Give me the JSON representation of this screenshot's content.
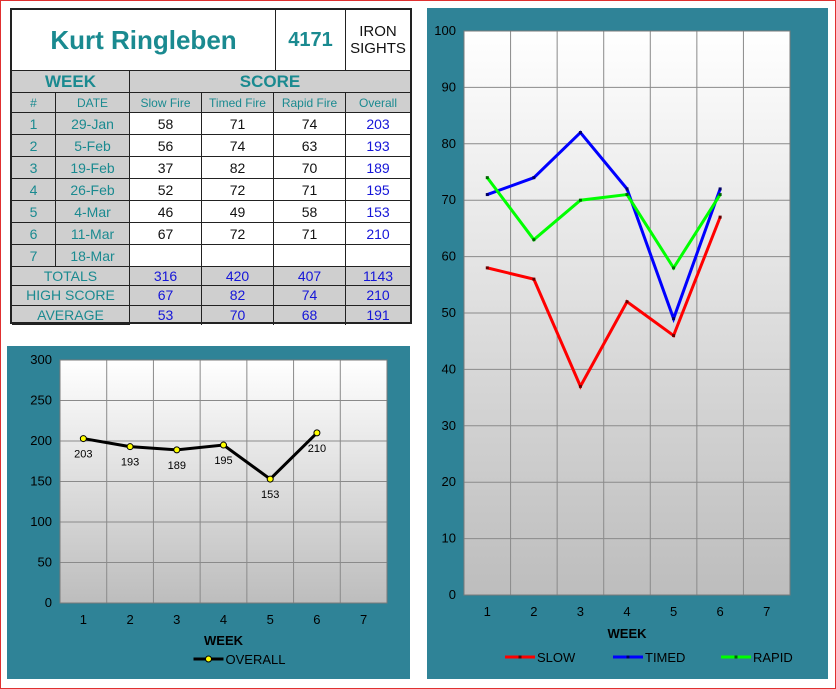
{
  "shooter": {
    "name": "Kurt Ringleben",
    "number": "4171",
    "category": "IRON\nSIGHTS"
  },
  "table": {
    "week_header": "WEEK",
    "score_header": "SCORE",
    "columns": [
      "#",
      "DATE",
      "Slow Fire",
      "Timed Fire",
      "Rapid Fire",
      "Overall"
    ],
    "rows": [
      {
        "num": "1",
        "date": "29-Jan",
        "slow": "58",
        "timed": "71",
        "rapid": "74",
        "overall": "203"
      },
      {
        "num": "2",
        "date": "5-Feb",
        "slow": "56",
        "timed": "74",
        "rapid": "63",
        "overall": "193"
      },
      {
        "num": "3",
        "date": "19-Feb",
        "slow": "37",
        "timed": "82",
        "rapid": "70",
        "overall": "189"
      },
      {
        "num": "4",
        "date": "26-Feb",
        "slow": "52",
        "timed": "72",
        "rapid": "71",
        "overall": "195"
      },
      {
        "num": "5",
        "date": "4-Mar",
        "slow": "46",
        "timed": "49",
        "rapid": "58",
        "overall": "153"
      },
      {
        "num": "6",
        "date": "11-Mar",
        "slow": "67",
        "timed": "72",
        "rapid": "71",
        "overall": "210"
      },
      {
        "num": "7",
        "date": "18-Mar",
        "slow": "",
        "timed": "",
        "rapid": "",
        "overall": ""
      }
    ],
    "summary": [
      {
        "label": "TOTALS",
        "slow": "316",
        "timed": "420",
        "rapid": "407",
        "overall": "1143"
      },
      {
        "label": "HIGH SCORE",
        "slow": "67",
        "timed": "82",
        "rapid": "74",
        "overall": "210"
      },
      {
        "label": "AVERAGE",
        "slow": "53",
        "timed": "70",
        "rapid": "68",
        "overall": "191"
      }
    ]
  },
  "colors": {
    "panel": "#2f8397",
    "table_bg": "#cfcfcf",
    "teal_text": "#1a8a90",
    "blue_text": "#1515d8",
    "slow": "#ff0000",
    "timed": "#0000ff",
    "rapid": "#00ff00",
    "overall": "#000000",
    "overall_marker": "#ffff00"
  },
  "chart_data": [
    {
      "type": "line",
      "x": [
        1,
        2,
        3,
        4,
        5,
        6
      ],
      "xticks": [
        1,
        2,
        3,
        4,
        5,
        6,
        7
      ],
      "xlim": [
        0.5,
        7.5
      ],
      "ylim": [
        0,
        300
      ],
      "yticks": [
        0,
        50,
        100,
        150,
        200,
        250,
        300
      ],
      "xlabel": "WEEK",
      "grid": true,
      "legend": "bottom",
      "series": [
        {
          "name": "OVERALL",
          "values": [
            203,
            193,
            189,
            195,
            153,
            210
          ],
          "labels": [
            "203",
            "193",
            "189",
            "195",
            "153",
            "210"
          ]
        }
      ]
    },
    {
      "type": "line",
      "x": [
        1,
        2,
        3,
        4,
        5,
        6
      ],
      "xticks": [
        1,
        2,
        3,
        4,
        5,
        6,
        7
      ],
      "xlim": [
        0.5,
        7.5
      ],
      "ylim": [
        0,
        100
      ],
      "yticks": [
        0,
        10,
        20,
        30,
        40,
        50,
        60,
        70,
        80,
        90,
        100
      ],
      "xlabel": "WEEK",
      "grid": true,
      "legend": "bottom",
      "series": [
        {
          "name": "SLOW",
          "values": [
            58,
            56,
            37,
            52,
            46,
            67
          ]
        },
        {
          "name": "TIMED",
          "values": [
            71,
            74,
            82,
            72,
            49,
            72
          ]
        },
        {
          "name": "RAPID",
          "values": [
            74,
            63,
            70,
            71,
            58,
            71
          ]
        }
      ]
    }
  ]
}
